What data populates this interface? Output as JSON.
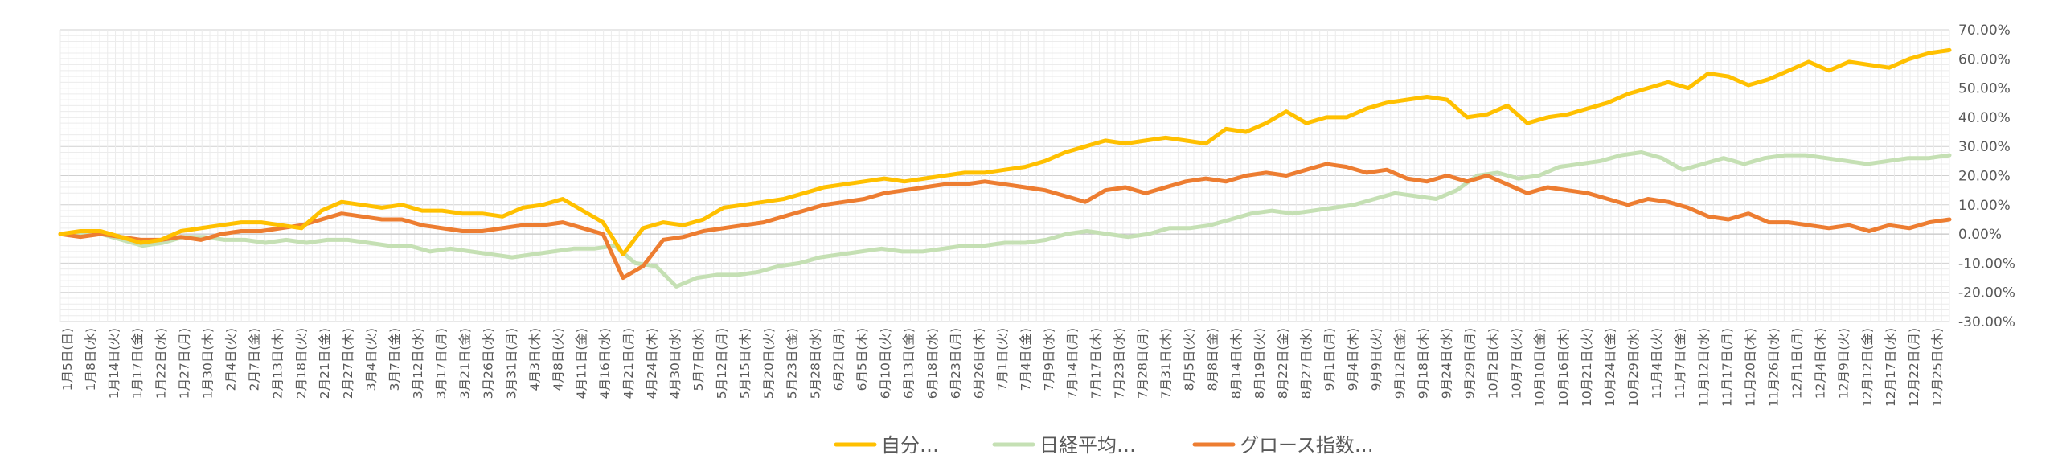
{
  "chart_data": {
    "type": "line",
    "title": "",
    "xlabel": "",
    "ylabel": "",
    "ylim": [
      -30,
      70
    ],
    "y_tick_labels": [
      "70.00%",
      "60.00%",
      "50.00%",
      "40.00%",
      "30.00%",
      "20.00%",
      "10.00%",
      "0.00%",
      "-10.00%",
      "-20.00%",
      "-30.00%"
    ],
    "y_tick_values": [
      70,
      60,
      50,
      40,
      30,
      20,
      10,
      0,
      -10,
      -20,
      -30
    ],
    "x_tick_labels": [
      "1月5日(日)",
      "1月8日(水)",
      "1月14日(火)",
      "1月17日(金)",
      "1月22日(水)",
      "1月27日(月)",
      "1月30日(木)",
      "2月4日(火)",
      "2月7日(金)",
      "2月13日(木)",
      "2月18日(火)",
      "2月21日(金)",
      "2月27日(木)",
      "3月4日(火)",
      "3月7日(金)",
      "3月12日(水)",
      "3月17日(月)",
      "3月21日(金)",
      "3月26日(水)",
      "3月31日(月)",
      "4月3日(木)",
      "4月8日(火)",
      "4月11日(金)",
      "4月16日(水)",
      "4月21日(月)",
      "4月24日(木)",
      "4月30日(水)",
      "5月7日(水)",
      "5月12日(月)",
      "5月15日(木)",
      "5月20日(火)",
      "5月23日(金)",
      "5月28日(水)",
      "6月2日(月)",
      "6月5日(木)",
      "6月10日(火)",
      "6月13日(金)",
      "6月18日(水)",
      "6月23日(月)",
      "6月26日(木)",
      "7月1日(火)",
      "7月4日(金)",
      "7月9日(水)",
      "7月14日(月)",
      "7月17日(木)",
      "7月23日(水)",
      "7月28日(月)",
      "7月31日(木)",
      "8月5日(火)",
      "8月8日(金)",
      "8月14日(木)",
      "8月19日(火)",
      "8月22日(金)",
      "8月27日(水)",
      "9月1日(月)",
      "9月4日(木)",
      "9月9日(火)",
      "9月12日(金)",
      "9月18日(木)",
      "9月24日(水)",
      "9月29日(月)",
      "10月2日(木)",
      "10月7日(火)",
      "10月10日(金)",
      "10月16日(木)",
      "10月21日(火)",
      "10月24日(金)",
      "10月29日(水)",
      "11月4日(火)",
      "11月7日(金)",
      "11月12日(水)",
      "11月17日(月)",
      "11月20日(木)",
      "11月26日(水)",
      "12月1日(月)",
      "12月4日(木)",
      "12月9日(火)",
      "12月12日(金)",
      "12月17日(水)",
      "12月22日(月)",
      "12月25日(木)"
    ],
    "grid": true,
    "legend_position": "bottom",
    "series": [
      {
        "name": "自分…",
        "color": "#FFC000",
        "values": [
          0,
          1,
          1,
          -1,
          -3,
          -2,
          1,
          2,
          3,
          4,
          4,
          3,
          2,
          8,
          11,
          10,
          9,
          10,
          8,
          8,
          7,
          7,
          6,
          9,
          10,
          12,
          8,
          4,
          -7,
          2,
          4,
          3,
          5,
          9,
          10,
          11,
          12,
          14,
          16,
          17,
          18,
          19,
          18,
          19,
          20,
          21,
          21,
          22,
          23,
          25,
          28,
          30,
          32,
          31,
          32,
          33,
          32,
          31,
          36,
          35,
          38,
          42,
          38,
          40,
          40,
          43,
          45,
          46,
          47,
          46,
          40,
          41,
          44,
          38,
          40,
          41,
          43,
          45,
          48,
          50,
          52,
          50,
          55,
          54,
          51,
          53,
          56,
          59,
          56,
          59,
          58,
          57,
          60,
          62,
          63
        ]
      },
      {
        "name": "日経平均…",
        "color": "#C5E0B4",
        "values": [
          0,
          0,
          0,
          -2,
          -4,
          -3,
          -1,
          -1,
          -2,
          -2,
          -3,
          -2,
          -3,
          -2,
          -2,
          -3,
          -4,
          -4,
          -6,
          -5,
          -6,
          -7,
          -8,
          -7,
          -6,
          -5,
          -5,
          -4,
          -10,
          -11,
          -18,
          -15,
          -14,
          -14,
          -13,
          -11,
          -10,
          -8,
          -7,
          -6,
          -5,
          -6,
          -6,
          -5,
          -4,
          -4,
          -3,
          -3,
          -2,
          0,
          1,
          0,
          -1,
          0,
          2,
          2,
          3,
          5,
          7,
          8,
          7,
          8,
          9,
          10,
          12,
          14,
          13,
          12,
          15,
          20,
          21,
          19,
          20,
          23,
          24,
          25,
          27,
          28,
          26,
          22,
          24,
          26,
          24,
          26,
          27,
          27,
          26,
          25,
          24,
          25,
          26,
          26,
          27
        ]
      },
      {
        "name": "グロース指数…",
        "color": "#ED7D31",
        "values": [
          0,
          -1,
          0,
          -1,
          -2,
          -2,
          -1,
          -2,
          0,
          1,
          1,
          2,
          3,
          5,
          7,
          6,
          5,
          5,
          3,
          2,
          1,
          1,
          2,
          3,
          3,
          4,
          2,
          0,
          -15,
          -11,
          -2,
          -1,
          1,
          2,
          3,
          4,
          6,
          8,
          10,
          11,
          12,
          14,
          15,
          16,
          17,
          17,
          18,
          17,
          16,
          15,
          13,
          11,
          15,
          16,
          14,
          16,
          18,
          19,
          18,
          20,
          21,
          20,
          22,
          24,
          23,
          21,
          22,
          19,
          18,
          20,
          18,
          20,
          17,
          14,
          16,
          15,
          14,
          12,
          10,
          12,
          11,
          9,
          6,
          5,
          7,
          4,
          4,
          3,
          2,
          3,
          1,
          3,
          2,
          4,
          5
        ]
      }
    ]
  }
}
